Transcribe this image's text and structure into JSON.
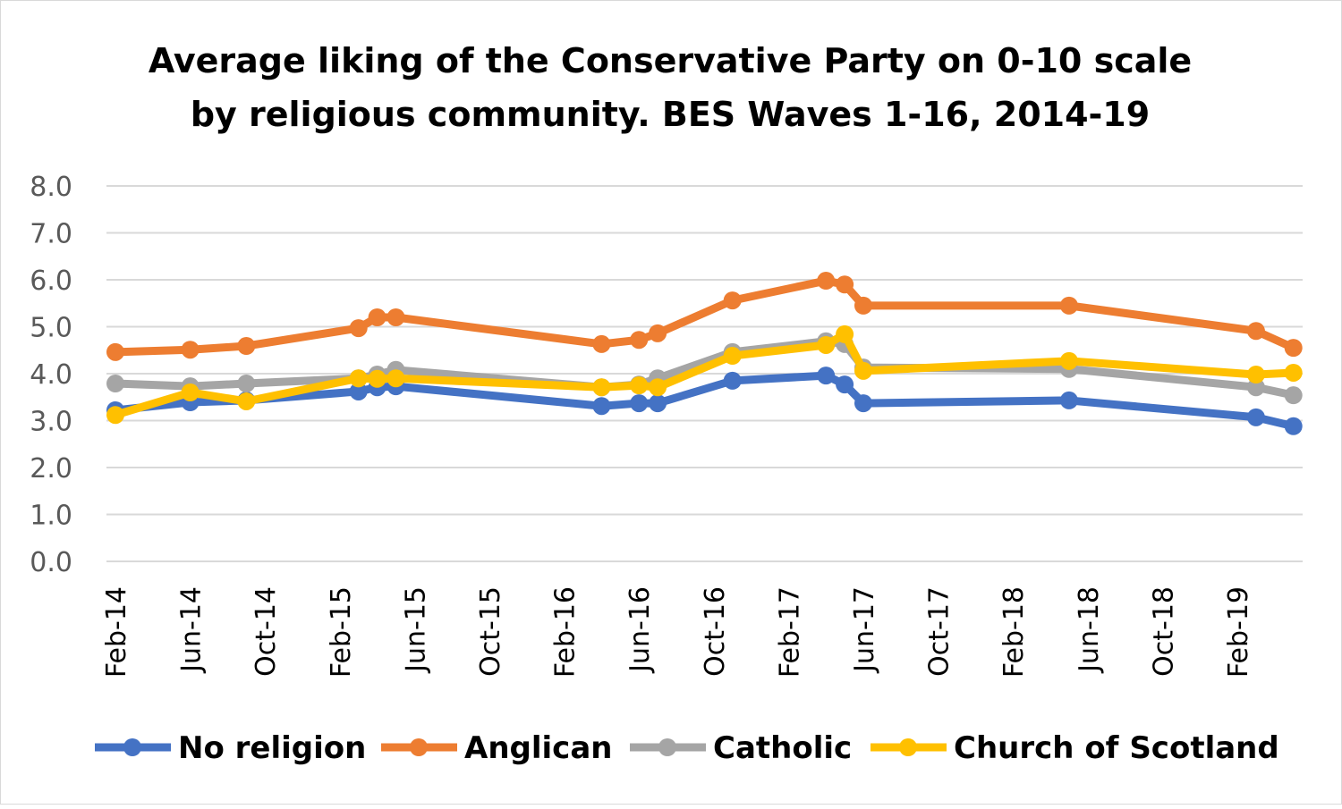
{
  "chart_data": {
    "type": "line",
    "title": [
      "Average liking of the Conservative Party on 0-10 scale",
      "by religious community. BES Waves 1-16, 2014-19"
    ],
    "xlabel": "",
    "ylabel": "",
    "ylim": [
      0,
      8
    ],
    "yticks": [
      "0.0",
      "1.0",
      "2.0",
      "3.0",
      "4.0",
      "5.0",
      "6.0",
      "7.0",
      "8.0"
    ],
    "xticks": [
      "Feb-14",
      "Jun-14",
      "Oct-14",
      "Feb-15",
      "Jun-15",
      "Oct-15",
      "Feb-16",
      "Jun-16",
      "Oct-16",
      "Feb-17",
      "Jun-17",
      "Oct-17",
      "Feb-18",
      "Jun-18",
      "Oct-18",
      "Feb-19"
    ],
    "grid": true,
    "legend_position": "bottom",
    "x": [
      "2014-02",
      "2014-06",
      "2014-09",
      "2015-03",
      "2015-04",
      "2015-05",
      "2016-04",
      "2016-06",
      "2016-07",
      "2016-11",
      "2017-04",
      "2017-05",
      "2017-06",
      "2018-05",
      "2019-03",
      "2019-05"
    ],
    "series": [
      {
        "name": "No religion",
        "color": "#4472C4",
        "values": [
          3.22,
          3.39,
          3.43,
          3.62,
          3.71,
          3.73,
          3.31,
          3.37,
          3.37,
          3.85,
          3.96,
          3.77,
          3.37,
          3.43,
          3.07,
          2.88
        ]
      },
      {
        "name": "Anglican",
        "color": "#ED7D31",
        "values": [
          4.46,
          4.51,
          4.59,
          4.97,
          5.2,
          5.2,
          4.63,
          4.72,
          4.86,
          5.56,
          5.98,
          5.9,
          5.45,
          5.45,
          4.91,
          4.55
        ]
      },
      {
        "name": "Catholic",
        "color": "#A5A5A5",
        "values": [
          3.79,
          3.73,
          3.79,
          3.9,
          3.98,
          4.08,
          3.71,
          3.77,
          3.9,
          4.46,
          4.69,
          4.63,
          4.13,
          4.1,
          3.71,
          3.54
        ]
      },
      {
        "name": "Church of Scotland",
        "color": "#FFC000",
        "values": [
          3.12,
          3.6,
          3.41,
          3.9,
          3.89,
          3.9,
          3.71,
          3.75,
          3.71,
          4.38,
          4.61,
          4.84,
          4.06,
          4.27,
          3.98,
          4.02
        ]
      }
    ]
  }
}
